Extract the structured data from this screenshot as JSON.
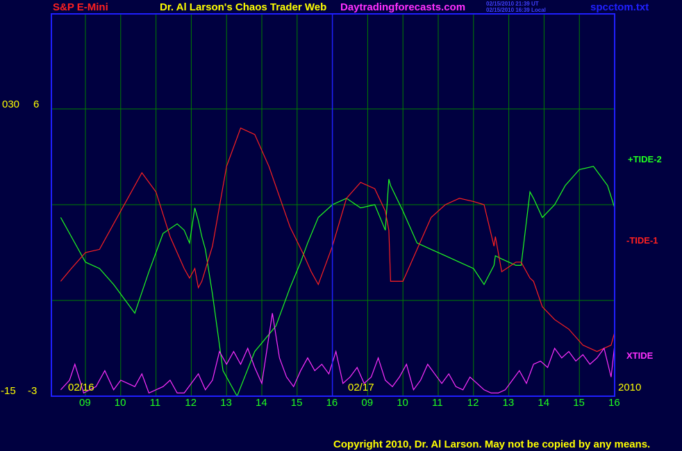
{
  "header": {
    "instrument": "S&P E-Mini",
    "title": "Dr. Al Larson's Chaos Trader Web",
    "site": "Daytradingforecasts.com",
    "time_ut": "02/15/2010 21:39 UT",
    "time_local": "02/15/2010 16:39 Local",
    "filename": "spcctom.txt"
  },
  "footer": {
    "copyright": "Copyright 2010, Dr. Al Larson. May not be copied by any means."
  },
  "colors": {
    "background": "#000040",
    "grid": "#008000",
    "axis": "#2020ff",
    "tide1": "#ff2020",
    "tide2": "#20ff20",
    "xtide": "#ff30ff",
    "label": "#ffff00"
  },
  "chart_data": {
    "type": "line",
    "x_dates": [
      "02/16",
      "02/17"
    ],
    "x_year": "2010",
    "x_hours": [
      "09",
      "10",
      "11",
      "12",
      "13",
      "14",
      "15",
      "16",
      "09",
      "10",
      "11",
      "12",
      "13",
      "14",
      "15",
      "16"
    ],
    "left_axis": {
      "left_top": "030",
      "right_top": "6",
      "left_bottom": "-15",
      "right_bottom": "-3"
    },
    "xlim": [
      0,
      16
    ],
    "ylim": [
      -3,
      6
    ],
    "series": [
      {
        "name": "+TIDE-2",
        "x": [
          -0.7,
          -0.4,
          0,
          0.4,
          0.8,
          1.4,
          1.8,
          2.2,
          2.6,
          2.8,
          2.95,
          3.1,
          3.2,
          3.3,
          3.4,
          3.6,
          3.9,
          4.3,
          4.8,
          5.4,
          5.8,
          6.1,
          6.3,
          6.6,
          7.0,
          7.4,
          7.8,
          8.2,
          8.5,
          8.6,
          8.65,
          9.0,
          9.4,
          9.8,
          10.2,
          10.6,
          11.0,
          11.3,
          11.58,
          11.62,
          11.8,
          12.2,
          12.35,
          12.6,
          12.7,
          12.95,
          13.3,
          13.6,
          14.0,
          14.4,
          14.8,
          15.2,
          15.8,
          16.1
        ],
        "y": [
          2.6,
          2.0,
          1.2,
          1.0,
          0.5,
          -0.4,
          0.9,
          2.1,
          2.4,
          2.2,
          1.8,
          2.9,
          2.5,
          2.0,
          1.6,
          0.2,
          -2.2,
          -3.0,
          -1.6,
          -0.8,
          0.4,
          1.2,
          1.8,
          2.6,
          3.0,
          3.2,
          2.9,
          3.0,
          2.2,
          3.8,
          3.6,
          2.8,
          1.8,
          1.6,
          1.4,
          1.2,
          1.0,
          0.5,
          1.1,
          1.4,
          1.3,
          1.1,
          1.1,
          3.4,
          3.2,
          2.6,
          3.0,
          3.6,
          4.1,
          4.2,
          3.6,
          2.9,
          2.4,
          2.0
        ],
        "label_y": 1.9
      },
      {
        "name": "-TIDE-1",
        "x": [
          -0.7,
          -0.4,
          0,
          0.4,
          0.8,
          1.2,
          1.6,
          2.0,
          2.4,
          2.8,
          2.95,
          3.1,
          3.2,
          3.3,
          3.6,
          4.0,
          4.4,
          4.8,
          5.2,
          5.8,
          6.2,
          6.4,
          6.6,
          7.0,
          7.4,
          7.8,
          8.2,
          8.5,
          8.6,
          8.65,
          9.0,
          9.4,
          9.8,
          10.2,
          10.6,
          11.0,
          11.3,
          11.58,
          11.62,
          11.8,
          12.2,
          12.35,
          12.6,
          12.7,
          12.95,
          13.3,
          13.7,
          14.1,
          14.5,
          14.9,
          15.2,
          15.8,
          16.1
        ],
        "y": [
          0.6,
          1.0,
          1.5,
          1.6,
          2.4,
          3.2,
          4.0,
          3.4,
          2.0,
          1.0,
          0.7,
          1.0,
          0.4,
          0.6,
          1.7,
          4.2,
          5.4,
          5.2,
          4.2,
          2.3,
          1.4,
          0.9,
          0.5,
          1.7,
          3.2,
          3.7,
          3.5,
          2.8,
          2.2,
          0.6,
          0.6,
          1.6,
          2.6,
          3.0,
          3.2,
          3.1,
          3.0,
          1.7,
          2.0,
          0.9,
          1.2,
          1.2,
          0.7,
          0.6,
          -0.2,
          -0.6,
          -0.9,
          -1.4,
          -1.6,
          -1.4,
          -1.0,
          -0.6,
          -0.6
        ],
        "label_y": -0.6
      },
      {
        "name": "XTIDE",
        "x": [
          -0.7,
          -0.45,
          -0.3,
          -0.05,
          0.3,
          0.55,
          0.8,
          1.0,
          1.2,
          1.4,
          1.6,
          1.8,
          2.0,
          2.2,
          2.4,
          2.6,
          2.8,
          3.0,
          3.2,
          3.4,
          3.6,
          3.8,
          4.0,
          4.2,
          4.4,
          4.6,
          4.8,
          5.0,
          5.3,
          5.5,
          5.7,
          5.9,
          6.1,
          6.3,
          6.5,
          6.7,
          6.9,
          7.1,
          7.3,
          7.5,
          7.7,
          7.9,
          8.1,
          8.3,
          8.5,
          8.7,
          8.9,
          9.1,
          9.3,
          9.5,
          9.7,
          9.9,
          10.1,
          10.3,
          10.5,
          10.7,
          10.9,
          11.1,
          11.3,
          11.5,
          11.7,
          11.9,
          12.1,
          12.3,
          12.5,
          12.7,
          12.9,
          13.1,
          13.3,
          13.5,
          13.7,
          13.9,
          14.1,
          14.3,
          14.5,
          14.7,
          14.9,
          15.1,
          15.3,
          15.5,
          15.7,
          15.9,
          16.1
        ],
        "y": [
          -2.8,
          -2.5,
          -2.0,
          -2.9,
          -2.7,
          -2.2,
          -2.8,
          -2.5,
          -2.6,
          -2.7,
          -2.3,
          -2.9,
          -2.8,
          -2.7,
          -2.5,
          -2.9,
          -2.9,
          -2.6,
          -2.3,
          -2.8,
          -2.5,
          -1.6,
          -2.0,
          -1.6,
          -2.0,
          -1.5,
          -2.1,
          -2.6,
          -0.4,
          -1.8,
          -2.4,
          -2.7,
          -2.2,
          -1.8,
          -2.2,
          -2.0,
          -2.3,
          -1.6,
          -2.6,
          -2.4,
          -2.1,
          -2.6,
          -2.4,
          -1.8,
          -2.5,
          -2.7,
          -2.4,
          -2.0,
          -2.8,
          -2.5,
          -2.0,
          -2.3,
          -2.6,
          -2.3,
          -2.7,
          -2.8,
          -2.4,
          -2.6,
          -2.8,
          -2.9,
          -2.9,
          -2.8,
          -2.5,
          -2.2,
          -2.6,
          -2.0,
          -1.9,
          -2.1,
          -1.5,
          -1.8,
          -1.6,
          -1.9,
          -1.7,
          -2.0,
          -1.8,
          -1.5,
          -2.4,
          -1.4,
          -1.2,
          -2.5,
          -2.4,
          -1.9,
          -1.6
        ],
        "label_y": -1.9
      }
    ],
    "grid": true
  }
}
